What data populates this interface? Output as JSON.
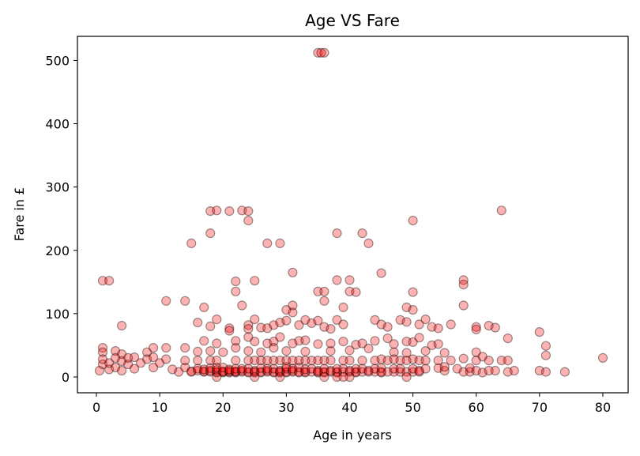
{
  "chart_data": {
    "type": "scatter",
    "title": "Age VS Fare",
    "xlabel": "Age in years",
    "ylabel": "Fare in £",
    "xlim": [
      -3,
      84
    ],
    "ylim": [
      -25,
      538
    ],
    "xticks": [
      0,
      10,
      20,
      30,
      40,
      50,
      60,
      70,
      80
    ],
    "yticks": [
      0,
      100,
      200,
      300,
      400,
      500
    ],
    "grid": false,
    "marker_color": "#ff0000",
    "marker_edge_color": "#000000",
    "marker_alpha": 0.3,
    "series": [
      {
        "points": [
          [
            35,
            512
          ],
          [
            36,
            512
          ],
          [
            35.5,
            512
          ],
          [
            18,
            262
          ],
          [
            19,
            263
          ],
          [
            21,
            262
          ],
          [
            23,
            263
          ],
          [
            24,
            262
          ],
          [
            64,
            263
          ],
          [
            50,
            247
          ],
          [
            24,
            247
          ],
          [
            18,
            227
          ],
          [
            38,
            227
          ],
          [
            42,
            227
          ],
          [
            15,
            211
          ],
          [
            27,
            211
          ],
          [
            29,
            211
          ],
          [
            43,
            211
          ],
          [
            31,
            165
          ],
          [
            45,
            164
          ],
          [
            1,
            152
          ],
          [
            2,
            152
          ],
          [
            22,
            151
          ],
          [
            25,
            152
          ],
          [
            38,
            153
          ],
          [
            40,
            153
          ],
          [
            58,
            153
          ],
          [
            58,
            146
          ],
          [
            22,
            135
          ],
          [
            35,
            135
          ],
          [
            36,
            135
          ],
          [
            40,
            135
          ],
          [
            41,
            134
          ],
          [
            50,
            134
          ],
          [
            11,
            120
          ],
          [
            14,
            120
          ],
          [
            36,
            120
          ],
          [
            17,
            110
          ],
          [
            23,
            113
          ],
          [
            31,
            113
          ],
          [
            39,
            110
          ],
          [
            49,
            110
          ],
          [
            50,
            106
          ],
          [
            58,
            113
          ],
          [
            30,
            106
          ],
          [
            31,
            102
          ],
          [
            4,
            81
          ],
          [
            16,
            86
          ],
          [
            18,
            80
          ],
          [
            19,
            91
          ],
          [
            21,
            77
          ],
          [
            21,
            73
          ],
          [
            24,
            82
          ],
          [
            24,
            76
          ],
          [
            25,
            91
          ],
          [
            26,
            78
          ],
          [
            27,
            77
          ],
          [
            28,
            82
          ],
          [
            29,
            86
          ],
          [
            30,
            89
          ],
          [
            32,
            82
          ],
          [
            33,
            90
          ],
          [
            34,
            85
          ],
          [
            35,
            89
          ],
          [
            36,
            79
          ],
          [
            37,
            76
          ],
          [
            38,
            90
          ],
          [
            39,
            83
          ],
          [
            44,
            90
          ],
          [
            45,
            83
          ],
          [
            46,
            79
          ],
          [
            48,
            90
          ],
          [
            49,
            87
          ],
          [
            51,
            83
          ],
          [
            52,
            91
          ],
          [
            53,
            79
          ],
          [
            54,
            77
          ],
          [
            56,
            83
          ],
          [
            60,
            79
          ],
          [
            60,
            75
          ],
          [
            62,
            81
          ],
          [
            63,
            78
          ],
          [
            17,
            57
          ],
          [
            19,
            53
          ],
          [
            22,
            57
          ],
          [
            24,
            63
          ],
          [
            25,
            56
          ],
          [
            27,
            53
          ],
          [
            28,
            56
          ],
          [
            29,
            63
          ],
          [
            31,
            53
          ],
          [
            32,
            57
          ],
          [
            33,
            58
          ],
          [
            35,
            52
          ],
          [
            37,
            53
          ],
          [
            39,
            56
          ],
          [
            41,
            51
          ],
          [
            42,
            53
          ],
          [
            44,
            57
          ],
          [
            46,
            61
          ],
          [
            47,
            52
          ],
          [
            49,
            56
          ],
          [
            50,
            55
          ],
          [
            51,
            62
          ],
          [
            53,
            50
          ],
          [
            54,
            52
          ],
          [
            65,
            61
          ],
          [
            1,
            46
          ],
          [
            1,
            39
          ],
          [
            3,
            41
          ],
          [
            4,
            36
          ],
          [
            6,
            31
          ],
          [
            8,
            39
          ],
          [
            9,
            46
          ],
          [
            11,
            46
          ],
          [
            14,
            46
          ],
          [
            16,
            40
          ],
          [
            18,
            41
          ],
          [
            20,
            39
          ],
          [
            22,
            46
          ],
          [
            24,
            41
          ],
          [
            26,
            39
          ],
          [
            28,
            46
          ],
          [
            30,
            41
          ],
          [
            33,
            40
          ],
          [
            37,
            41
          ],
          [
            40,
            42
          ],
          [
            43,
            45
          ],
          [
            47,
            39
          ],
          [
            49,
            38
          ],
          [
            52,
            41
          ],
          [
            55,
            38
          ],
          [
            60,
            39
          ],
          [
            71,
            49
          ],
          [
            71,
            34
          ],
          [
            0.5,
            10
          ],
          [
            1,
            20
          ],
          [
            1,
            28
          ],
          [
            2,
            12
          ],
          [
            2,
            22
          ],
          [
            3,
            30
          ],
          [
            3,
            15
          ],
          [
            4,
            25
          ],
          [
            4,
            10
          ],
          [
            5,
            20
          ],
          [
            5,
            30
          ],
          [
            6,
            13
          ],
          [
            7,
            22
          ],
          [
            8,
            28
          ],
          [
            9,
            15
          ],
          [
            9,
            31
          ],
          [
            10,
            22
          ],
          [
            11,
            28
          ],
          [
            12,
            12
          ],
          [
            13,
            8
          ],
          [
            14,
            15
          ],
          [
            14,
            26
          ],
          [
            15,
            8
          ],
          [
            15,
            9
          ],
          [
            16,
            10
          ],
          [
            16,
            13
          ],
          [
            16,
            26
          ],
          [
            17,
            8
          ],
          [
            17,
            9
          ],
          [
            17,
            12
          ],
          [
            18,
            8
          ],
          [
            18,
            10
          ],
          [
            18,
            14
          ],
          [
            18,
            26
          ],
          [
            19,
            7
          ],
          [
            19,
            8
          ],
          [
            19,
            11
          ],
          [
            19,
            15
          ],
          [
            19,
            26
          ],
          [
            20,
            7
          ],
          [
            20,
            8
          ],
          [
            20,
            9
          ],
          [
            20,
            15
          ],
          [
            21,
            7
          ],
          [
            21,
            8
          ],
          [
            21,
            10
          ],
          [
            21,
            12
          ],
          [
            22,
            7
          ],
          [
            22,
            8
          ],
          [
            22,
            9
          ],
          [
            22,
            13
          ],
          [
            22,
            26
          ],
          [
            23,
            8
          ],
          [
            23,
            10
          ],
          [
            23,
            13
          ],
          [
            24,
            7
          ],
          [
            24,
            8
          ],
          [
            24,
            13
          ],
          [
            24,
            26
          ],
          [
            25,
            7
          ],
          [
            25,
            8
          ],
          [
            25,
            10
          ],
          [
            25,
            26
          ],
          [
            26,
            7
          ],
          [
            26,
            8
          ],
          [
            26,
            14
          ],
          [
            26,
            26
          ],
          [
            27,
            8
          ],
          [
            27,
            10
          ],
          [
            27,
            13
          ],
          [
            27,
            26
          ],
          [
            28,
            7
          ],
          [
            28,
            8
          ],
          [
            28,
            13
          ],
          [
            28,
            26
          ],
          [
            29,
            7
          ],
          [
            29,
            8
          ],
          [
            29,
            10
          ],
          [
            29,
            26
          ],
          [
            30,
            7
          ],
          [
            30,
            8
          ],
          [
            30,
            13
          ],
          [
            30,
            16
          ],
          [
            30,
            26
          ],
          [
            31,
            8
          ],
          [
            31,
            10
          ],
          [
            31,
            13
          ],
          [
            31,
            26
          ],
          [
            32,
            7
          ],
          [
            32,
            8
          ],
          [
            32,
            15
          ],
          [
            32,
            26
          ],
          [
            33,
            7
          ],
          [
            33,
            8
          ],
          [
            33,
            12
          ],
          [
            33,
            26
          ],
          [
            34,
            8
          ],
          [
            34,
            13
          ],
          [
            34,
            26
          ],
          [
            35,
            7
          ],
          [
            35,
            8
          ],
          [
            35,
            10
          ],
          [
            35,
            26
          ],
          [
            36,
            7
          ],
          [
            36,
            8
          ],
          [
            36,
            13
          ],
          [
            36,
            26
          ],
          [
            37,
            8
          ],
          [
            37,
            10
          ],
          [
            37,
            26
          ],
          [
            38,
            7
          ],
          [
            38,
            8
          ],
          [
            38,
            13
          ],
          [
            39,
            8
          ],
          [
            39,
            13
          ],
          [
            39,
            26
          ],
          [
            40,
            8
          ],
          [
            40,
            10
          ],
          [
            40,
            26
          ],
          [
            41,
            7
          ],
          [
            41,
            8
          ],
          [
            41,
            13
          ],
          [
            42,
            8
          ],
          [
            42,
            13
          ],
          [
            42,
            26
          ],
          [
            43,
            8
          ],
          [
            43,
            10
          ],
          [
            44,
            8
          ],
          [
            44,
            13
          ],
          [
            44,
            26
          ],
          [
            45,
            7
          ],
          [
            45,
            8
          ],
          [
            45,
            14
          ],
          [
            45,
            28
          ],
          [
            46,
            8
          ],
          [
            46,
            26
          ],
          [
            47,
            8
          ],
          [
            47,
            13
          ],
          [
            47,
            28
          ],
          [
            48,
            8
          ],
          [
            48,
            13
          ],
          [
            48,
            26
          ],
          [
            49,
            8
          ],
          [
            49,
            26
          ],
          [
            50,
            8
          ],
          [
            50,
            13
          ],
          [
            50,
            28
          ],
          [
            51,
            8
          ],
          [
            51,
            10
          ],
          [
            51,
            26
          ],
          [
            52,
            13
          ],
          [
            52,
            26
          ],
          [
            54,
            14
          ],
          [
            54,
            26
          ],
          [
            55,
            10
          ],
          [
            55,
            16
          ],
          [
            56,
            26
          ],
          [
            57,
            13
          ],
          [
            58,
            8
          ],
          [
            58,
            29
          ],
          [
            59,
            8
          ],
          [
            59,
            14
          ],
          [
            60,
            10
          ],
          [
            60,
            26
          ],
          [
            61,
            7
          ],
          [
            61,
            32
          ],
          [
            62,
            26
          ],
          [
            62,
            10
          ],
          [
            63,
            10
          ],
          [
            64,
            26
          ],
          [
            65,
            8
          ],
          [
            65,
            26
          ],
          [
            66,
            10
          ],
          [
            70,
            10
          ],
          [
            70,
            71
          ],
          [
            71,
            8
          ],
          [
            74,
            8
          ],
          [
            80,
            30
          ],
          [
            25,
            0
          ],
          [
            29,
            0
          ],
          [
            36,
            0
          ],
          [
            38,
            0
          ],
          [
            40,
            0
          ],
          [
            49,
            0
          ],
          [
            19,
            0
          ],
          [
            39,
            0
          ]
        ]
      }
    ]
  }
}
